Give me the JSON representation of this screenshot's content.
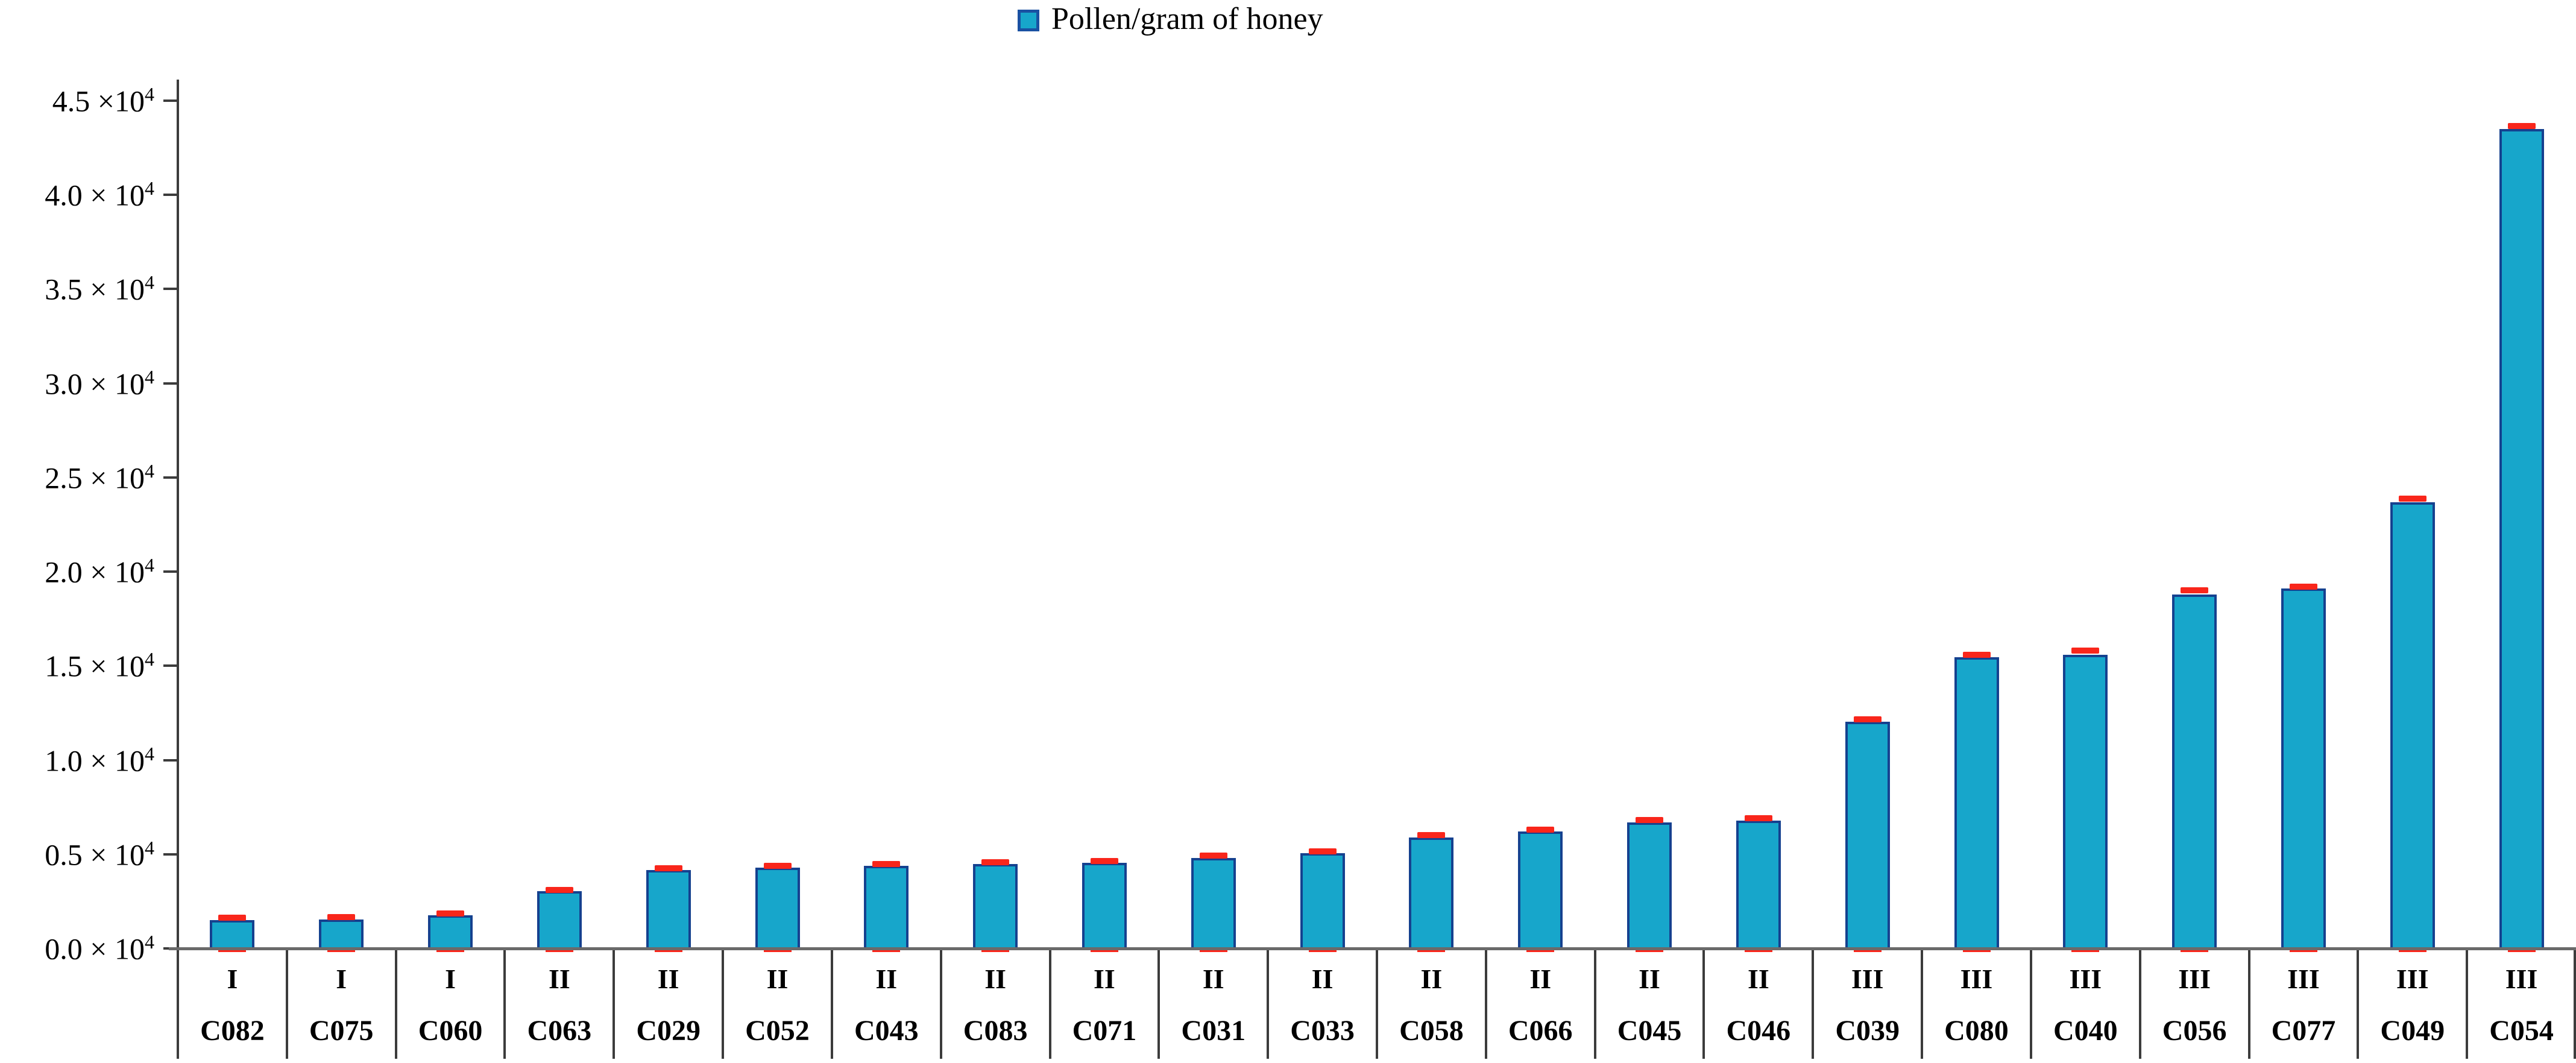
{
  "legend": {
    "label": "Pollen/gram of honey"
  },
  "colors": {
    "bar_fill": "#17a6cb",
    "bar_border": "#15418f",
    "error_cap": "#f9261b",
    "axis_line": "#3c3c3c",
    "baseline": "#6a6a6a"
  },
  "y_axis": {
    "ticks": [
      {
        "text": "4.5 ×10",
        "sup": "4",
        "value": 45000
      },
      {
        "text": "4.0 × 10",
        "sup": "4",
        "value": 40000
      },
      {
        "text": "3.5 × 10",
        "sup": "4",
        "value": 35000
      },
      {
        "text": "3.0 × 10",
        "sup": "4",
        "value": 30000
      },
      {
        "text": "2.5 × 10",
        "sup": "4",
        "value": 25000
      },
      {
        "text": "2.0 × 10",
        "sup": "4",
        "value": 20000
      },
      {
        "text": "1.5 × 10",
        "sup": "4",
        "value": 15000
      },
      {
        "text": "1.0 × 10",
        "sup": "4",
        "value": 10000
      },
      {
        "text": "0.5 × 10",
        "sup": "4",
        "value": 5000
      },
      {
        "text": "0.0 × 10",
        "sup": "4",
        "value": 0
      }
    ]
  },
  "chart_data": {
    "type": "bar",
    "title": "",
    "xlabel": "",
    "ylabel": "",
    "ylim": [
      0,
      45000
    ],
    "grid": false,
    "legend_entries": [
      "Pollen/gram of honey"
    ],
    "legend_position": "top",
    "categories": [
      "C082",
      "C075",
      "C060",
      "C063",
      "C029",
      "C052",
      "C043",
      "C083",
      "C071",
      "C031",
      "C033",
      "C058",
      "C066",
      "C045",
      "C046",
      "C039",
      "C080",
      "C040",
      "C056",
      "C077",
      "C049",
      "C054"
    ],
    "groups": [
      "I",
      "I",
      "I",
      "II",
      "II",
      "II",
      "II",
      "II",
      "II",
      "II",
      "II",
      "II",
      "II",
      "II",
      "II",
      "III",
      "III",
      "III",
      "III",
      "III",
      "III",
      "III"
    ],
    "values": [
      1500,
      1550,
      1750,
      3050,
      4150,
      4300,
      4400,
      4480,
      4560,
      4800,
      5050,
      5900,
      6200,
      6700,
      6800,
      12050,
      15450,
      15600,
      18800,
      19100,
      23700,
      43500
    ],
    "errors": [
      150,
      150,
      130,
      100,
      150,
      120,
      120,
      130,
      120,
      150,
      150,
      150,
      150,
      150,
      130,
      150,
      180,
      250,
      250,
      150,
      200,
      200
    ]
  }
}
